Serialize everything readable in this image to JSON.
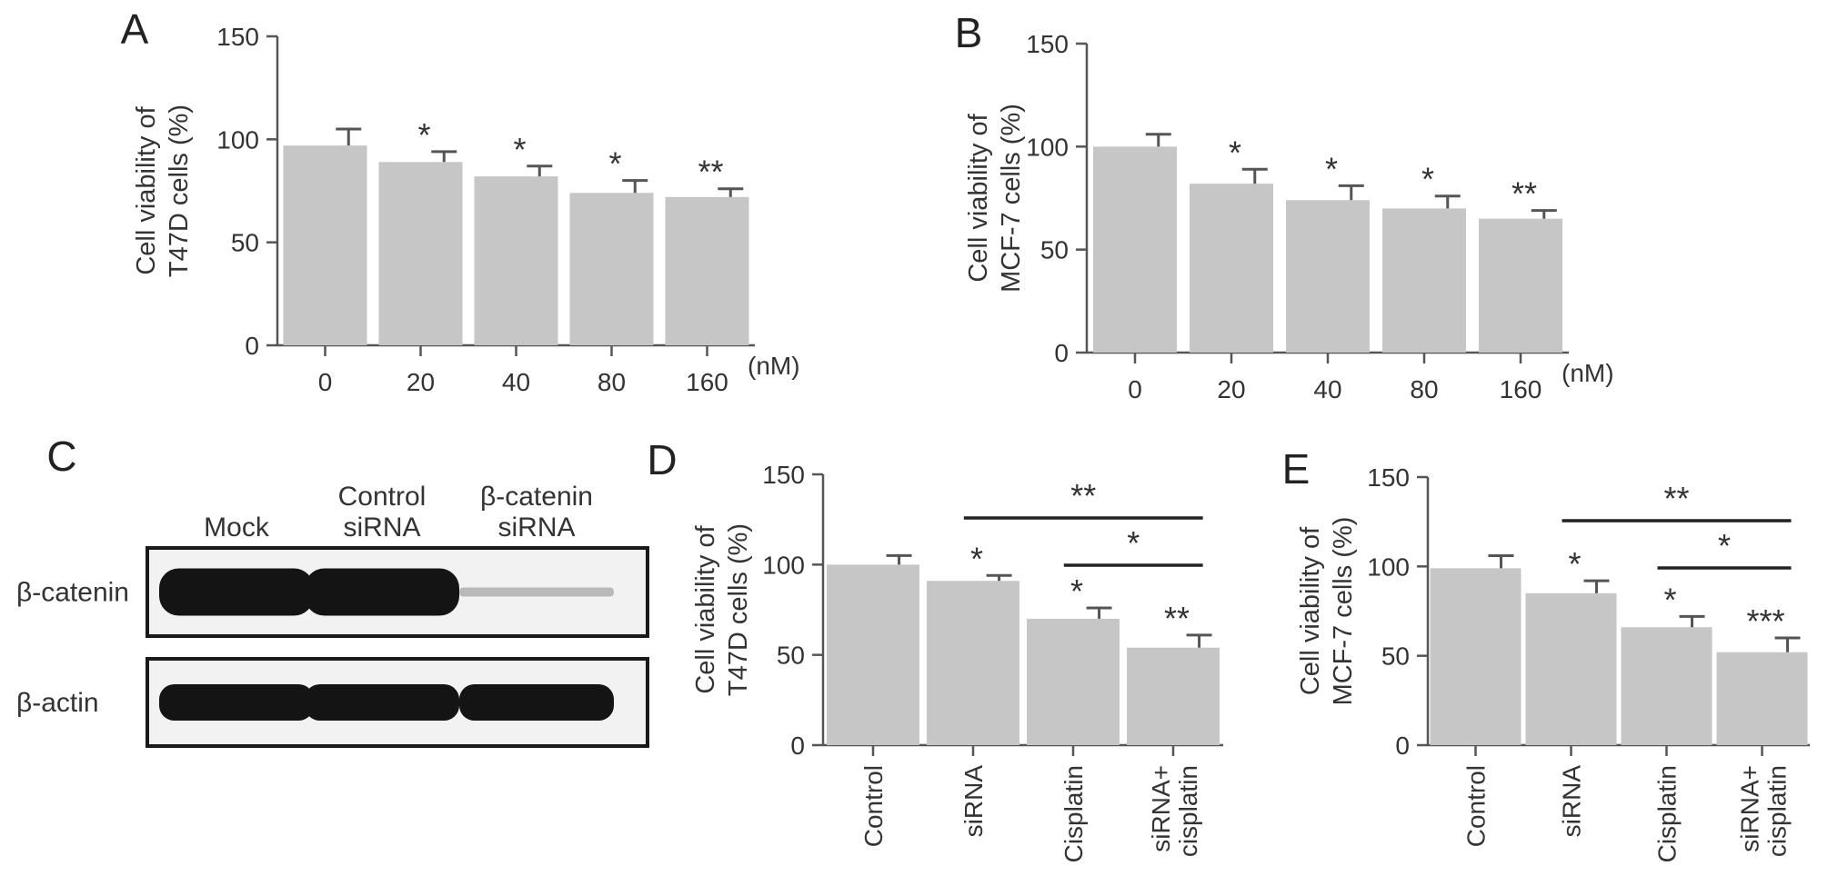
{
  "colors": {
    "bar": "#c6c6c6",
    "axis": "#555555",
    "text": "#333333",
    "band": "#141414"
  },
  "chart_data": [
    {
      "panel": "A",
      "type": "bar",
      "ylabel": [
        "Cell viability of",
        "T47D cells (%)"
      ],
      "x_unit": "(nM)",
      "ylim": [
        0,
        150
      ],
      "yticks": [
        0,
        50,
        100,
        150
      ],
      "categories": [
        "0",
        "20",
        "40",
        "80",
        "160"
      ],
      "values": [
        97,
        89,
        82,
        74,
        72
      ],
      "errors": [
        8,
        5,
        5,
        6,
        4
      ],
      "significance": [
        "",
        "*",
        "*",
        "*",
        "**"
      ]
    },
    {
      "panel": "B",
      "type": "bar",
      "ylabel": [
        "Cell viability of",
        "MCF-7 cells (%)"
      ],
      "x_unit": "(nM)",
      "ylim": [
        0,
        150
      ],
      "yticks": [
        0,
        50,
        100,
        150
      ],
      "categories": [
        "0",
        "20",
        "40",
        "80",
        "160"
      ],
      "values": [
        100,
        82,
        74,
        70,
        65
      ],
      "errors": [
        6,
        7,
        7,
        6,
        4
      ],
      "significance": [
        "",
        "*",
        "*",
        "*",
        "**"
      ]
    },
    {
      "panel": "D",
      "type": "bar",
      "ylabel": [
        "Cell viability of",
        "T47D cells (%)"
      ],
      "ylim": [
        0,
        150
      ],
      "yticks": [
        0,
        50,
        100,
        150
      ],
      "categories": [
        [
          "Control"
        ],
        [
          "siRNA"
        ],
        [
          "Cisplatin"
        ],
        [
          "siRNA+",
          "cisplatin"
        ]
      ],
      "values": [
        100,
        91,
        70,
        54
      ],
      "errors": [
        5,
        3,
        6,
        7
      ],
      "significance": [
        "",
        "*",
        "*",
        "**"
      ],
      "brackets": [
        {
          "from": 1,
          "to": 3,
          "label": "**"
        },
        {
          "from": 2,
          "to": 3,
          "label": "*"
        }
      ]
    },
    {
      "panel": "E",
      "type": "bar",
      "ylabel": [
        "Cell viability of",
        "MCF-7 cells (%)"
      ],
      "ylim": [
        0,
        150
      ],
      "yticks": [
        0,
        50,
        100,
        150
      ],
      "categories": [
        [
          "Control"
        ],
        [
          "siRNA"
        ],
        [
          "Cisplatin"
        ],
        [
          "siRNA+",
          "cisplatin"
        ]
      ],
      "values": [
        99,
        85,
        66,
        52
      ],
      "errors": [
        7,
        7,
        6,
        8
      ],
      "significance": [
        "",
        "*",
        "*",
        "***"
      ],
      "brackets": [
        {
          "from": 1,
          "to": 3,
          "label": "**"
        },
        {
          "from": 2,
          "to": 3,
          "label": "*"
        }
      ]
    }
  ],
  "blot": {
    "panel": "C",
    "lanes": [
      [
        "Mock"
      ],
      [
        "Control",
        "siRNA"
      ],
      [
        "β-catenin",
        "siRNA"
      ]
    ],
    "rows": [
      {
        "label": "β-catenin",
        "intensity": [
          1.0,
          1.0,
          0.15
        ]
      },
      {
        "label": "β-actin",
        "intensity": [
          1.0,
          1.0,
          1.0
        ]
      }
    ]
  }
}
